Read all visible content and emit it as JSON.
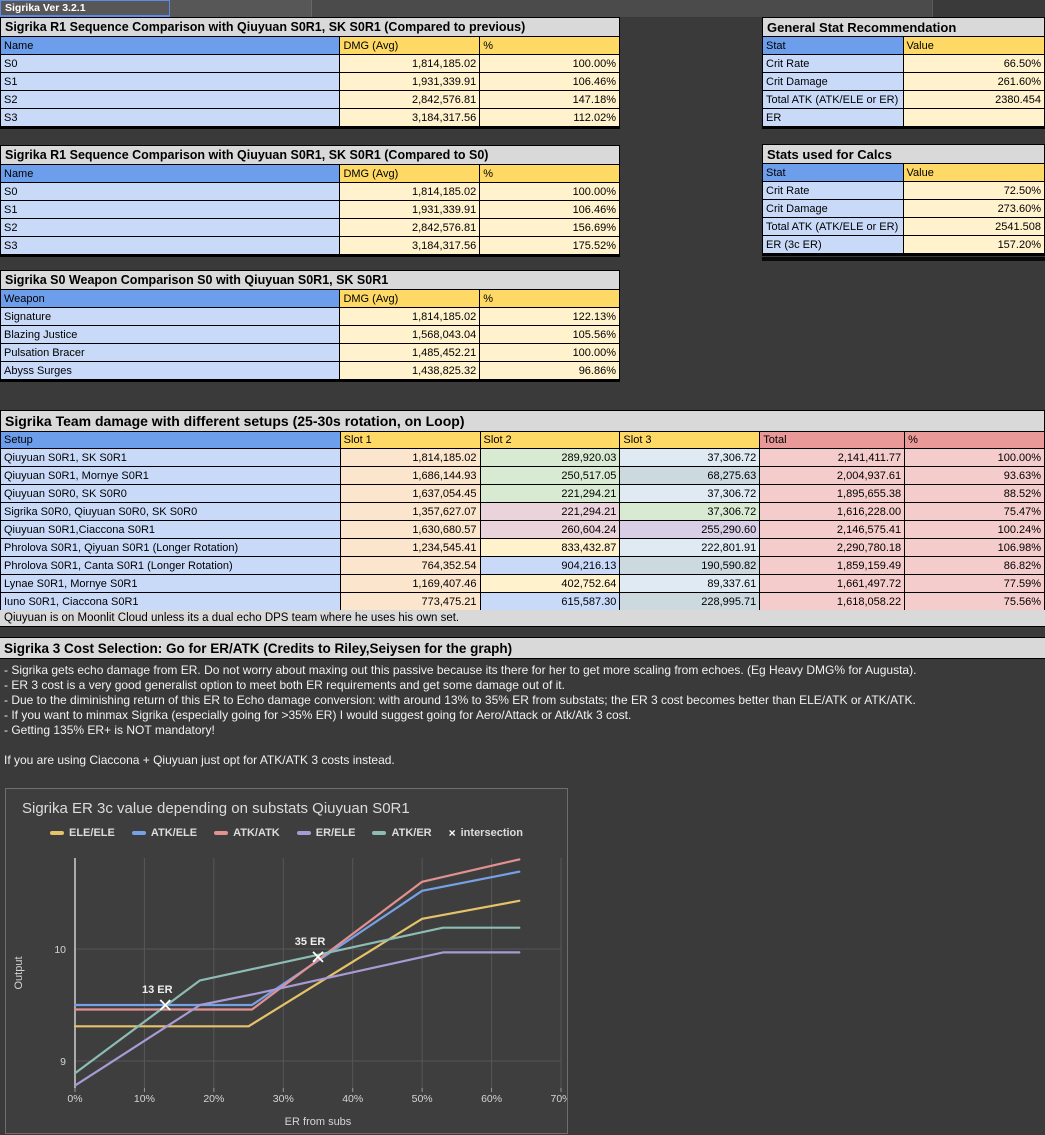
{
  "app": {
    "version_label": "Sigrika Ver 3.2.1"
  },
  "cell_colors": {
    "blue_header": "#6d9eeb",
    "yellow_header": "#ffd966",
    "salmon_header": "#ea9999",
    "name": "#c9daf8",
    "value": "#fff2cc",
    "slot1": "#fce5cd",
    "total": "#f4cccc",
    "green": "#d9ead3",
    "pink": "#ead3da",
    "purple": "#d8cfe6",
    "paleblue": "#dfeaf3",
    "grayblue": "#ccd9df",
    "cream": "#fff2cc",
    "lightblue": "#c9daf8",
    "title_gray": "#d9d9d9"
  },
  "tables": {
    "seq_prev": {
      "title": "Sigrika R1 Sequence Comparison with Qiuyuan S0R1, SK S0R1 (Compared to previous)",
      "columns": [
        "Name",
        "DMG (Avg)",
        "%"
      ],
      "rows": [
        [
          "S0",
          "1,814,185.02",
          "100.00%"
        ],
        [
          "S1",
          "1,931,339.91",
          "106.46%"
        ],
        [
          "S2",
          "2,842,576.81",
          "147.18%"
        ],
        [
          "S3",
          "3,184,317.56",
          "112.02%"
        ]
      ]
    },
    "seq_s0": {
      "title": "Sigrika R1 Sequence Comparison with Qiuyuan S0R1, SK S0R1 (Compared to S0)",
      "columns": [
        "Name",
        "DMG (Avg)",
        "%"
      ],
      "rows": [
        [
          "S0",
          "1,814,185.02",
          "100.00%"
        ],
        [
          "S1",
          "1,931,339.91",
          "106.46%"
        ],
        [
          "S2",
          "2,842,576.81",
          "156.69%"
        ],
        [
          "S3",
          "3,184,317.56",
          "175.52%"
        ]
      ]
    },
    "weapon": {
      "title": "Sigrika S0 Weapon Comparison S0 with Qiuyuan S0R1, SK S0R1",
      "columns": [
        "Weapon",
        "DMG (Avg)",
        "%"
      ],
      "rows": [
        [
          "Signature",
          "1,814,185.02",
          "122.13%"
        ],
        [
          "Blazing Justice",
          "1,568,043.04",
          "105.56%"
        ],
        [
          "Pulsation Bracer",
          "1,485,452.21",
          "100.00%"
        ],
        [
          "Abyss Surges",
          "1,438,825.32",
          "96.86%"
        ]
      ]
    },
    "general_stats": {
      "title": "General Stat Recommendation",
      "columns": [
        "Stat",
        "Value"
      ],
      "rows": [
        [
          "Crit Rate",
          "66.50%"
        ],
        [
          "Crit Damage",
          "261.60%"
        ],
        [
          "Total ATK (ATK/ELE or ER)",
          "2380.454"
        ],
        [
          "ER",
          ""
        ]
      ]
    },
    "calc_stats": {
      "title": "Stats used for Calcs",
      "columns": [
        "Stat",
        "Value"
      ],
      "rows": [
        [
          "Crit Rate",
          "72.50%"
        ],
        [
          "Crit Damage",
          "273.60%"
        ],
        [
          "Total ATK (ATK/ELE or ER)",
          "2541.508"
        ],
        [
          "ER (3c ER)",
          "157.20%"
        ]
      ]
    },
    "team": {
      "title": "Sigrika Team damage with different setups (25-30s rotation, on Loop)",
      "columns": [
        "Setup",
        "Slot 1",
        "Slot 2",
        "Slot 3",
        "Total",
        "%"
      ],
      "rows": [
        [
          "Qiuyuan S0R1, SK S0R1",
          "1,814,185.02",
          "289,920.03",
          "37,306.72",
          "2,141,411.77",
          "100.00%"
        ],
        [
          "Qiuyuan S0R1, Mornye S0R1",
          "1,686,144.93",
          "250,517.05",
          "68,275.63",
          "2,004,937.61",
          "93.63%"
        ],
        [
          "Qiuyuan S0R0, SK S0R0",
          "1,637,054.45",
          "221,294.21",
          "37,306.72",
          "1,895,655.38",
          "88.52%"
        ],
        [
          "Sigrika S0R0, Qiuyuan S0R0, SK S0R0",
          "1,357,627.07",
          "221,294.21",
          "37,306.72",
          "1,616,228.00",
          "75.47%"
        ],
        [
          "Qiuyuan S0R1,Ciaccona S0R1",
          "1,630,680.57",
          "260,604.24",
          "255,290.60",
          "2,146,575.41",
          "100.24%"
        ],
        [
          "Phrolova S0R1, Qiyuan S0R1 (Longer Rotation)",
          "1,234,545.41",
          "833,432.87",
          "222,801.91",
          "2,290,780.18",
          "106.98%"
        ],
        [
          "Phrolova S0R1, Canta S0R1 (Longer Rotation)",
          "764,352.54",
          "904,216.13",
          "190,590.82",
          "1,859,159.49",
          "86.82%"
        ],
        [
          "Lynae S0R1, Mornye S0R1",
          "1,169,407.46",
          "402,752.64",
          "89,337.61",
          "1,661,497.72",
          "77.59%"
        ],
        [
          "Iuno S0R1, Ciaccona S0R1",
          "773,475.21",
          "615,587.30",
          "228,995.71",
          "1,618,058.22",
          "75.56%"
        ]
      ],
      "slot_colors": [
        [
          "green",
          "paleblue"
        ],
        [
          "green",
          "grayblue"
        ],
        [
          "green",
          "paleblue"
        ],
        [
          "pink",
          "green"
        ],
        [
          "pink",
          "purple"
        ],
        [
          "cream",
          "paleblue"
        ],
        [
          "lightblue",
          "grayblue"
        ],
        [
          "cream",
          "paleblue"
        ],
        [
          "lightblue",
          "grayblue"
        ]
      ],
      "note": "Qiuyuan is on Moonlit Cloud unless its a dual echo DPS team where he uses his own set."
    }
  },
  "notes": {
    "title": "Sigrika 3 Cost Selection: Go for ER/ATK (Credits to Riley,Seiysen for the graph)",
    "lines": [
      "- Sigrika gets echo damage from ER. Do not worry about maxing out this passive because its there for her to get more scaling from echoes. (Eg Heavy DMG% for Augusta).",
      "- ER 3 cost is a very good generalist option to meet both ER requirements and get some damage out of it.",
      "- Due to the diminishing return of this ER to Echo damage conversion: with around 13% to 35% ER from substats; the ER 3 cost becomes better than ELE/ATK or ATK/ATK.",
      "- If you want to minmax Sigrika (especially going for >35% ER) I would suggest going for Aero/Attack or Atk/Atk 3 cost.",
      "- Getting 135% ER+ is NOT mandatory!",
      "",
      "If you are using Ciaccona + Qiuyuan just opt for ATK/ATK 3 costs instead."
    ]
  },
  "chart_data": {
    "type": "line",
    "title": "Sigrika ER 3c value depending on substats Qiuyuan S0R1",
    "xlabel": "ER from subs",
    "ylabel": "Output",
    "xlim": [
      0,
      70
    ],
    "ylim": [
      8.76,
      10.81
    ],
    "x_ticks": [
      "0%",
      "10%",
      "20%",
      "30%",
      "40%",
      "50%",
      "60%",
      "70%"
    ],
    "y_ticks": [
      9,
      10
    ],
    "grid": true,
    "legend_position": "top",
    "legend_intersection_label": "intersection",
    "series": [
      {
        "name": "ELE/ELE",
        "color": "#e6c369",
        "points": [
          [
            0,
            9.31
          ],
          [
            25,
            9.31
          ],
          [
            50,
            10.27
          ],
          [
            64,
            10.43
          ]
        ]
      },
      {
        "name": "ATK/ELE",
        "color": "#76a1e8",
        "points": [
          [
            0,
            9.5
          ],
          [
            25.5,
            9.5
          ],
          [
            50,
            10.52
          ],
          [
            64,
            10.69
          ]
        ]
      },
      {
        "name": "ATK/ATK",
        "color": "#e29191",
        "points": [
          [
            0,
            9.46
          ],
          [
            25.5,
            9.46
          ],
          [
            50,
            10.6
          ],
          [
            64,
            10.8
          ]
        ]
      },
      {
        "name": "ER/ELE",
        "color": "#a89ad4",
        "points": [
          [
            0,
            8.78
          ],
          [
            18,
            9.5
          ],
          [
            26,
            9.6
          ],
          [
            53,
            9.97
          ],
          [
            64,
            9.97
          ]
        ]
      },
      {
        "name": "ATK/ER",
        "color": "#8cbcb4",
        "points": [
          [
            0,
            8.89
          ],
          [
            18,
            9.72
          ],
          [
            53,
            10.19
          ],
          [
            64,
            10.19
          ]
        ]
      }
    ],
    "intersections": [
      {
        "label": "13 ER",
        "x": 13,
        "y": 9.5
      },
      {
        "label": "35 ER",
        "x": 35,
        "y": 9.93
      }
    ]
  }
}
